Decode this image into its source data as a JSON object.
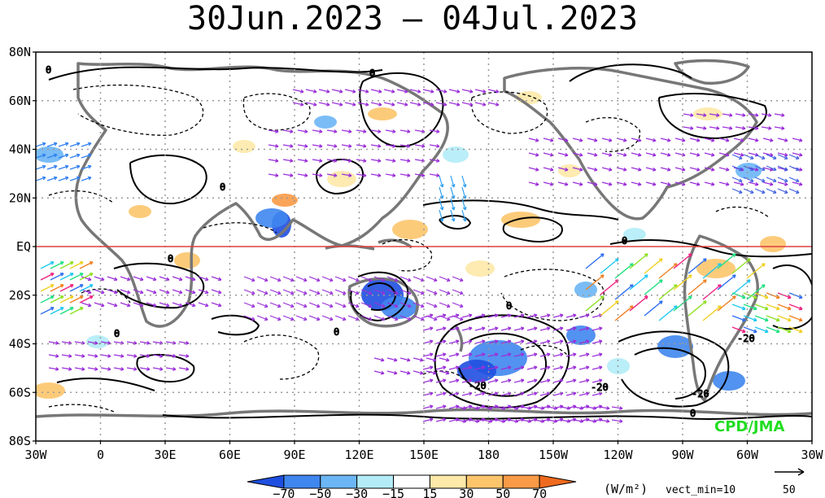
{
  "title": "30Jun.2023 – 04Jul.2023",
  "lat_labels": [
    "80N",
    "60N",
    "40N",
    "20N",
    "EQ",
    "20S",
    "40S",
    "60S",
    "80S"
  ],
  "lon_labels": [
    "30W",
    "0",
    "30E",
    "60E",
    "90E",
    "120E",
    "150E",
    "180",
    "150W",
    "120W",
    "90W",
    "60W",
    "30W"
  ],
  "contour_labels": [
    "0",
    "0",
    "0",
    "0",
    "0",
    "0",
    "0",
    "0",
    "0",
    "-20",
    "-20",
    "-20",
    "-20"
  ],
  "colorbar": {
    "labels": [
      "−70",
      "−50",
      "−30",
      "−15",
      "15",
      "30",
      "50",
      "70"
    ],
    "colors": [
      "#1f4fe0",
      "#3f86ee",
      "#6cb6f5",
      "#b3ecf7",
      "#ffffff",
      "#fde9a8",
      "#fcc56c",
      "#f99a46",
      "#ef6a1e"
    ],
    "units": "(W/m²)"
  },
  "vector": {
    "min_label": "vect_min=10",
    "ref_value": "50"
  },
  "credit": "CPD/JMA",
  "colors": {
    "equator": "#e04040",
    "coast": "#777777",
    "contour": "#000000",
    "grid": "#999999",
    "vector_main": "#9b30d9"
  }
}
